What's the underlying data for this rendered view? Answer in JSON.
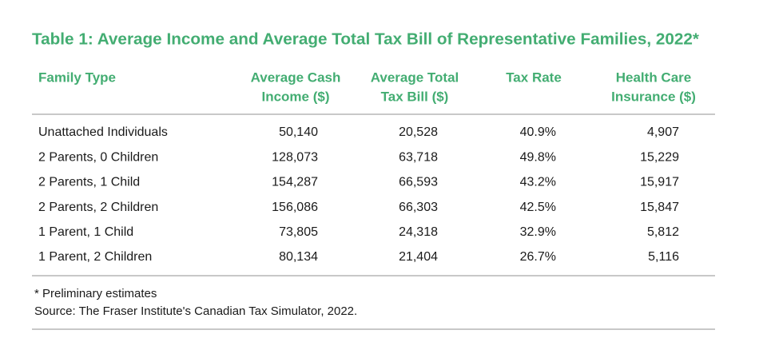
{
  "title": "Table 1: Average Income and Average Total Tax Bill of Representative Families, 2022*",
  "table": {
    "header": [
      [
        "Family Type"
      ],
      [
        "Average Cash",
        "Income ($)"
      ],
      [
        "Average Total",
        "Tax Bill ($)"
      ],
      [
        "Tax Rate"
      ],
      [
        "Health Care",
        "Insurance ($)"
      ]
    ],
    "rows": [
      [
        "Unattached Individuals",
        "50,140",
        "20,528",
        "40.9%",
        "4,907"
      ],
      [
        "2 Parents, 0 Children",
        "128,073",
        "63,718",
        "49.8%",
        "15,229"
      ],
      [
        "2 Parents, 1 Child",
        "154,287",
        "66,593",
        "43.2%",
        "15,917"
      ],
      [
        "2 Parents, 2 Children",
        "156,086",
        "66,303",
        "42.5%",
        "15,847"
      ],
      [
        "1 Parent, 1 Child",
        "73,805",
        "24,318",
        "32.9%",
        "5,812"
      ],
      [
        "1 Parent, 2 Children",
        "80,134",
        "21,404",
        "26.7%",
        "5,116"
      ]
    ]
  },
  "notes": [
    "* Preliminary estimates",
    "Source: The Fraser Institute's Canadian Tax Simulator, 2022."
  ]
}
